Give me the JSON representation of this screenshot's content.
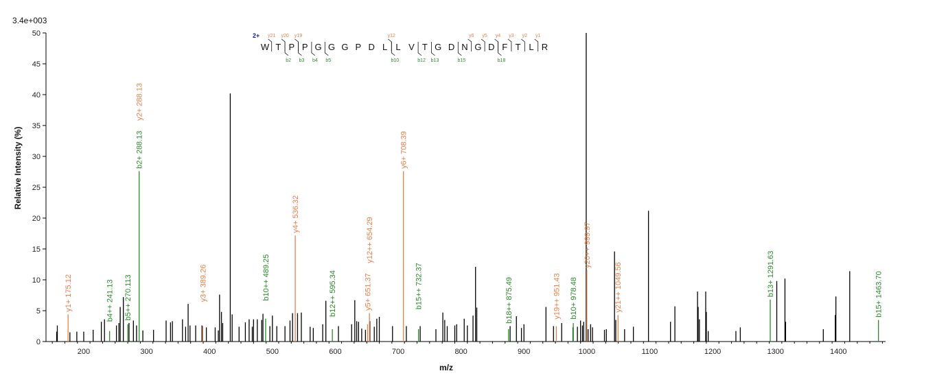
{
  "chart_data": {
    "type": "bar",
    "intensity_label": "3.4e+003",
    "xlabel": "m/z",
    "ylabel": "Relative   Intensity (%)",
    "xlim": [
      140,
      1475
    ],
    "ylim": [
      0,
      50
    ],
    "x_ticks": [
      200,
      300,
      400,
      500,
      600,
      700,
      800,
      900,
      1000,
      1100,
      1200,
      1300,
      1400
    ],
    "y_ticks": [
      0,
      5,
      10,
      15,
      20,
      25,
      30,
      35,
      40,
      45,
      50
    ],
    "colors": {
      "y_ion": "#e8804a",
      "b_ion": "#2a8a2a",
      "unassigned": "#000000",
      "charge": "#1a1aa8"
    },
    "peaks": [
      [
        157,
        1.6
      ],
      [
        158,
        2.6
      ],
      [
        178,
        1.5
      ],
      [
        189,
        1.6
      ],
      [
        200,
        1.6
      ],
      [
        215,
        1.9
      ],
      [
        228,
        3.2
      ],
      [
        233,
        3.6
      ],
      [
        252,
        2.6
      ],
      [
        256,
        3.0
      ],
      [
        258,
        5.6
      ],
      [
        263,
        7.2
      ],
      [
        272,
        3.0
      ],
      [
        279,
        3.4
      ],
      [
        284,
        2.6
      ],
      [
        294,
        1.8
      ],
      [
        311,
        1.9
      ],
      [
        331,
        3.4
      ],
      [
        338,
        3.1
      ],
      [
        341,
        3.3
      ],
      [
        357,
        3.6
      ],
      [
        362,
        2.4
      ],
      [
        366,
        6.1
      ],
      [
        369,
        2.6
      ],
      [
        378,
        2.6
      ],
      [
        388,
        2.6
      ],
      [
        395,
        2.3
      ],
      [
        409,
        2.3
      ],
      [
        414,
        1.8
      ],
      [
        416,
        7.6
      ],
      [
        419,
        4.8
      ],
      [
        421,
        3.0
      ],
      [
        433,
        40.2
      ],
      [
        436,
        4.4
      ],
      [
        447,
        2.4
      ],
      [
        457,
        3.1
      ],
      [
        463,
        3.6
      ],
      [
        468,
        2.4
      ],
      [
        470,
        3.6
      ],
      [
        476,
        3.6
      ],
      [
        483,
        3.5
      ],
      [
        485,
        4.5
      ],
      [
        496,
        2.5
      ],
      [
        500,
        4.2
      ],
      [
        507,
        2.5
      ],
      [
        520,
        2.5
      ],
      [
        528,
        3.4
      ],
      [
        532,
        4.6
      ],
      [
        540,
        4.6
      ],
      [
        546,
        4.7
      ],
      [
        560,
        2.4
      ],
      [
        565,
        2.2
      ],
      [
        580,
        2.8
      ],
      [
        585,
        6.6
      ],
      [
        605,
        2.5
      ],
      [
        626,
        2.8
      ],
      [
        631,
        6.7
      ],
      [
        634,
        3.3
      ],
      [
        637,
        3.2
      ],
      [
        642,
        2.1
      ],
      [
        648,
        1.9
      ],
      [
        655,
        3.3
      ],
      [
        662,
        2.4
      ],
      [
        666,
        3.7
      ],
      [
        670,
        4.0
      ],
      [
        691,
        2.5
      ],
      [
        713,
        2.5
      ],
      [
        735,
        2.5
      ],
      [
        760,
        2.0
      ],
      [
        771,
        4.7
      ],
      [
        774,
        3.5
      ],
      [
        778,
        2.5
      ],
      [
        790,
        2.6
      ],
      [
        793,
        2.8
      ],
      [
        805,
        3.7
      ],
      [
        810,
        2.6
      ],
      [
        819,
        4.2
      ],
      [
        823,
        12.1
      ],
      [
        825,
        5.5
      ],
      [
        878,
        2.5
      ],
      [
        888,
        4.1
      ],
      [
        896,
        2.2
      ],
      [
        900,
        2.8
      ],
      [
        935,
        5.6
      ],
      [
        947,
        2.5
      ],
      [
        960,
        3.0
      ],
      [
        978,
        2.3
      ],
      [
        985,
        2.4
      ],
      [
        990,
        3.4
      ],
      [
        993,
        2.6
      ],
      [
        995,
        3.2
      ],
      [
        999,
        50
      ],
      [
        1002,
        2.0
      ],
      [
        1006,
        2.8
      ],
      [
        1009,
        2.3
      ],
      [
        1028,
        1.9
      ],
      [
        1031,
        2.0
      ],
      [
        1044,
        14.6
      ],
      [
        1046,
        3.5
      ],
      [
        1060,
        2.0
      ],
      [
        1074,
        2.4
      ],
      [
        1098,
        21.2
      ],
      [
        1133,
        3.2
      ],
      [
        1140,
        5.7
      ],
      [
        1176,
        8.1
      ],
      [
        1177,
        5.6
      ],
      [
        1179,
        3.6
      ],
      [
        1189,
        8.1
      ],
      [
        1190,
        4.8
      ],
      [
        1193,
        1.7
      ],
      [
        1237,
        1.7
      ],
      [
        1244,
        2.3
      ],
      [
        1302,
        9.8
      ],
      [
        1315,
        10.2
      ],
      [
        1316,
        3.2
      ],
      [
        1376,
        2.0
      ],
      [
        1395,
        4.3
      ],
      [
        1396,
        7.3
      ],
      [
        1418,
        11.4
      ]
    ],
    "annotations": [
      {
        "mz": 175.12,
        "h": 4.4,
        "label": "y1+ 175.12",
        "ion": "y",
        "lh": 4.8
      },
      {
        "mz": 241.13,
        "h": 1.7,
        "label": "b4++ 241.13",
        "ion": "b",
        "lh": 3.2
      },
      {
        "mz": 270.113,
        "h": 2.8,
        "label": "b5++ 270.113",
        "ion": "b",
        "lh": 3.4
      },
      {
        "mz": 288.13,
        "h": 27.6,
        "label": "b2+ 288.13",
        "ion": "b",
        "lh": 28.0
      },
      {
        "mz": 288.13,
        "h": 0,
        "label": "y2+ 288.13",
        "ion": "y",
        "lh": 35.8
      },
      {
        "mz": 389.26,
        "h": 2.5,
        "label": "y3+ 389.26",
        "ion": "y",
        "lh": 6.4
      },
      {
        "mz": 489.25,
        "h": 3.7,
        "label": "b10++ 489.25",
        "ion": "b",
        "lh": 6.6
      },
      {
        "mz": 536.32,
        "h": 17.2,
        "label": "y4+ 536.32",
        "ion": "y",
        "lh": 17.6
      },
      {
        "mz": 595.34,
        "h": 2.0,
        "label": "b12++ 595.34",
        "ion": "b",
        "lh": 4.0
      },
      {
        "mz": 651.37,
        "h": 2.8,
        "label": "y5+ 651.37",
        "ion": "y",
        "lh": 5.0
      },
      {
        "mz": 654.29,
        "h": 4.6,
        "label": "y12++ 654.29",
        "ion": "y",
        "lh": 12.7
      },
      {
        "mz": 708.39,
        "h": 27.6,
        "label": "y6+ 708.39",
        "ion": "y",
        "lh": 28.0
      },
      {
        "mz": 732.37,
        "h": 2.0,
        "label": "b15++ 732.37",
        "ion": "b",
        "lh": 5.2
      },
      {
        "mz": 875.49,
        "h": 2.0,
        "label": "b18++ 875.49",
        "ion": "b",
        "lh": 2.9
      },
      {
        "mz": 951.43,
        "h": 2.5,
        "label": "y19++ 951.43",
        "ion": "y",
        "lh": 3.6
      },
      {
        "mz": 978.48,
        "h": 3.0,
        "label": "b10+ 978.48",
        "ion": "b",
        "lh": 3.6
      },
      {
        "mz": 999.97,
        "h": 11.6,
        "label": "y20++ 999.97",
        "ion": "y",
        "lh": 11.9
      },
      {
        "mz": 1049.56,
        "h": 4.3,
        "label": "y21++ 1049.56",
        "ion": "y",
        "lh": 4.7
      },
      {
        "mz": 1291.63,
        "h": 6.8,
        "label": "b13+ 1291.63",
        "ion": "b",
        "lh": 7.2
      },
      {
        "mz": 1463.7,
        "h": 3.5,
        "label": "b15+ 1463.70",
        "ion": "b",
        "lh": 3.9
      }
    ],
    "sequence": {
      "charge": "2+",
      "residues": [
        "W",
        "T",
        "P",
        "P",
        "G",
        "G",
        "G",
        "P",
        "D",
        "L",
        "L",
        "V",
        "T",
        "G",
        "D",
        "N",
        "G",
        "D",
        "F",
        "T",
        "L",
        "R"
      ],
      "y_ions": [
        {
          "after": 1,
          "label": "y21"
        },
        {
          "after": 2,
          "label": "y20"
        },
        {
          "after": 3,
          "label": "y19"
        },
        {
          "after": 10,
          "label": "y12"
        },
        {
          "after": 16,
          "label": "y6"
        },
        {
          "after": 17,
          "label": "y5"
        },
        {
          "after": 18,
          "label": "y4"
        },
        {
          "after": 19,
          "label": "y3"
        },
        {
          "after": 20,
          "label": "y2"
        },
        {
          "after": 21,
          "label": "y1"
        }
      ],
      "b_ions": [
        {
          "after": 2,
          "label": "b2"
        },
        {
          "after": 3,
          "label": "b3"
        },
        {
          "after": 4,
          "label": "b4"
        },
        {
          "after": 5,
          "label": "b5"
        },
        {
          "after": 10,
          "label": "b10"
        },
        {
          "after": 12,
          "label": "b12"
        },
        {
          "after": 13,
          "label": "b13"
        },
        {
          "after": 15,
          "label": "b15"
        },
        {
          "after": 18,
          "label": "b18"
        }
      ]
    }
  }
}
